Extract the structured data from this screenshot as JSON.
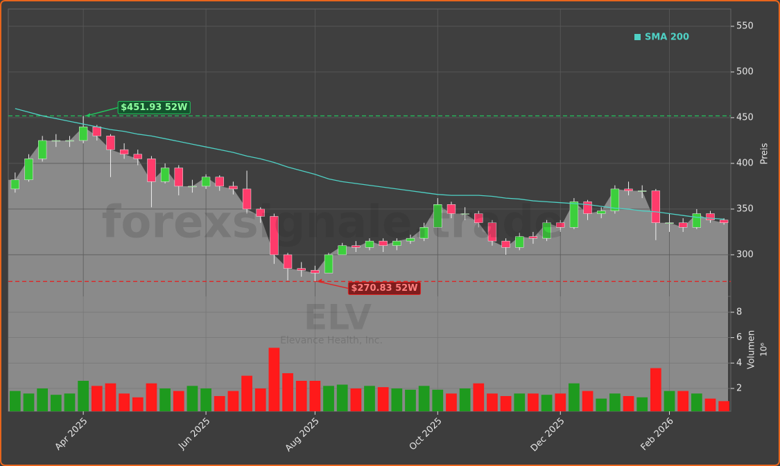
{
  "chart_data": {
    "type": "candlestick",
    "watermark": "forexsignale.trade",
    "symbol": "ELV",
    "company": "Elevance Health, Inc.",
    "categories": [
      null,
      null,
      null,
      null,
      null,
      "Apr 2025",
      null,
      null,
      null,
      null,
      null,
      null,
      null,
      null,
      "Jun 2025",
      null,
      null,
      null,
      null,
      null,
      null,
      null,
      "Aug 2025",
      null,
      null,
      null,
      null,
      null,
      null,
      null,
      null,
      "Oct 2025",
      null,
      null,
      null,
      null,
      null,
      null,
      null,
      null,
      "Dec 2025",
      null,
      null,
      null,
      null,
      null,
      null,
      null,
      "Feb 2026",
      null,
      null,
      null,
      null
    ],
    "open": [
      372,
      382,
      405,
      425,
      425,
      425,
      440,
      430,
      415,
      410,
      405,
      380,
      395,
      375,
      375,
      385,
      375,
      372,
      350,
      342,
      300,
      285,
      283,
      280,
      300,
      310,
      308,
      315,
      310,
      315,
      318,
      330,
      355,
      345,
      345,
      335,
      315,
      308,
      320,
      318,
      335,
      330,
      358,
      345,
      348,
      372,
      370,
      370,
      335,
      335,
      330,
      345,
      338
    ],
    "high": [
      390,
      410,
      430,
      432,
      430,
      452,
      442,
      432,
      422,
      415,
      408,
      400,
      398,
      382,
      388,
      387,
      380,
      392,
      352,
      345,
      302,
      292,
      288,
      302,
      313,
      315,
      318,
      318,
      318,
      322,
      335,
      362,
      358,
      352,
      348,
      338,
      318,
      324,
      325,
      338,
      338,
      362,
      360,
      352,
      376,
      380,
      376,
      372,
      345,
      340,
      350,
      348,
      340
    ],
    "low": [
      368,
      380,
      402,
      418,
      418,
      422,
      425,
      385,
      405,
      398,
      352,
      378,
      365,
      368,
      372,
      370,
      366,
      345,
      335,
      290,
      272,
      276,
      271,
      280,
      300,
      303,
      305,
      303,
      305,
      312,
      315,
      330,
      340,
      338,
      330,
      310,
      300,
      305,
      312,
      315,
      325,
      328,
      338,
      340,
      345,
      365,
      362,
      316,
      325,
      325,
      328,
      335,
      333
    ],
    "close": [
      382,
      405,
      425,
      425,
      425,
      440,
      430,
      415,
      410,
      405,
      380,
      395,
      375,
      375,
      385,
      375,
      372,
      350,
      342,
      300,
      285,
      283,
      280,
      300,
      310,
      308,
      315,
      310,
      315,
      318,
      330,
      355,
      345,
      345,
      335,
      315,
      308,
      320,
      318,
      335,
      330,
      358,
      345,
      348,
      372,
      370,
      370,
      335,
      335,
      330,
      345,
      338,
      335
    ],
    "up_color": "#3ccf3c",
    "down_color": "#ff3b6b",
    "area_color": "#8a8a8a",
    "sma": {
      "name": "SMA 200",
      "color": "#4fd1c5",
      "values": [
        460,
        456,
        452,
        449,
        446,
        443,
        440,
        437,
        435,
        432,
        430,
        427,
        424,
        421,
        418,
        415,
        412,
        408,
        405,
        401,
        396,
        392,
        388,
        383,
        380,
        378,
        376,
        374,
        372,
        370,
        368,
        366,
        365,
        365,
        365,
        364,
        362,
        361,
        359,
        358,
        357,
        356,
        355,
        353,
        351,
        350,
        348,
        347,
        345,
        343,
        341,
        340,
        339
      ]
    },
    "legend": "upper right",
    "ylabel": "Preis",
    "ylim": [
      254.5,
      568.9
    ],
    "yticks": [
      300,
      350,
      400,
      450,
      500,
      550
    ],
    "grid": true,
    "annotations": [
      {
        "value": 451.93,
        "label": "$451.93 52W",
        "color": "#22c55e",
        "index": 5
      },
      {
        "value": 270.83,
        "label": "$270.83 52W",
        "color": "#e02424",
        "index": 22
      }
    ],
    "volume": {
      "ylabel": "Volumen",
      "scale_label": "10⁶",
      "values": [
        1.8,
        1.6,
        2.0,
        1.5,
        1.6,
        2.6,
        2.2,
        2.4,
        1.6,
        1.3,
        2.4,
        2.0,
        1.8,
        2.2,
        2.0,
        1.4,
        1.8,
        3.0,
        2.0,
        5.2,
        3.2,
        2.6,
        2.6,
        2.2,
        2.3,
        2.0,
        2.2,
        2.1,
        2.0,
        1.9,
        2.2,
        1.9,
        1.6,
        2.0,
        2.4,
        1.6,
        1.4,
        1.6,
        1.6,
        1.5,
        1.6,
        2.4,
        1.8,
        1.2,
        1.6,
        1.4,
        1.3,
        3.6,
        1.8,
        1.8,
        1.6,
        1.2,
        1.0
      ],
      "up_color": "#1e9a1e",
      "down_color": "#ff1a1a",
      "ylim": [
        0.2,
        9.25
      ],
      "yticks": [
        2,
        4,
        6,
        8
      ]
    }
  }
}
